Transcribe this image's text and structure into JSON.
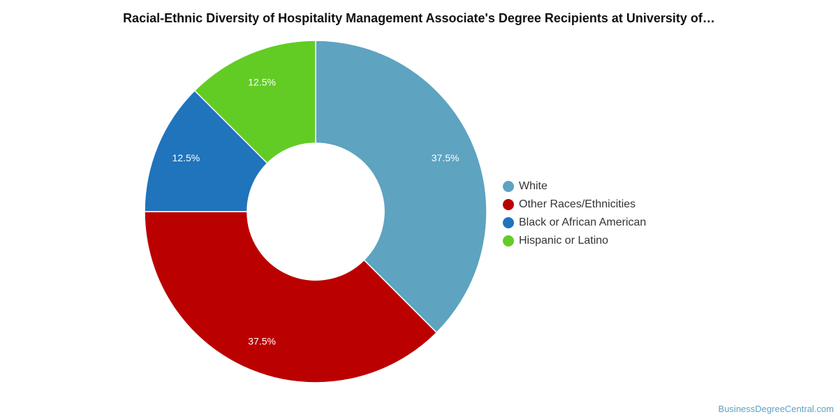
{
  "chart_data": {
    "type": "pie",
    "title": "Racial-Ethnic Diversity of Hospitality Management Associate's Degree Recipients at University of…",
    "donut": true,
    "legend_position": "right",
    "slices": [
      {
        "label": "White",
        "value": 37.5,
        "display": "37.5%",
        "color": "#5ea3c0"
      },
      {
        "label": "Other Races/Ethnicities",
        "value": 37.5,
        "display": "37.5%",
        "color": "#bb0000"
      },
      {
        "label": "Black or African American",
        "value": 12.5,
        "display": "12.5%",
        "color": "#1f74bb"
      },
      {
        "label": "Hispanic or Latino",
        "value": 12.5,
        "display": "12.5%",
        "color": "#62cc24"
      }
    ]
  },
  "credit": "BusinessDegreeCentral.com"
}
